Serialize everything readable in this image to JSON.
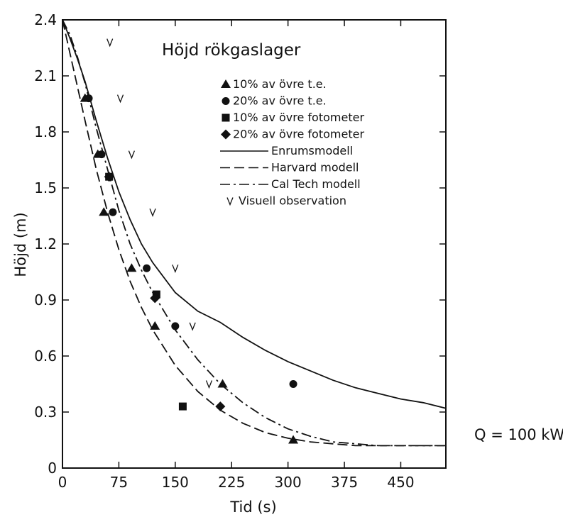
{
  "chart_data": {
    "type": "line",
    "title": "Höjd rökgaslager",
    "xlabel": "Tid (s)",
    "ylabel": "Höjd (m)",
    "xlim": [
      0,
      510
    ],
    "ylim": [
      0,
      2.4
    ],
    "x_ticks": [
      "0",
      "75",
      "150",
      "225",
      "300",
      "375",
      "450"
    ],
    "x_tick_values": [
      0,
      75,
      150,
      225,
      300,
      375,
      450
    ],
    "y_ticks": [
      "0",
      "0.3",
      "0.6",
      "0.9",
      "1.2",
      "1.5",
      "1.8",
      "2.1",
      "2.4"
    ],
    "y_tick_values": [
      0,
      0.3,
      0.6,
      0.9,
      1.2,
      1.5,
      1.8,
      2.1,
      2.4
    ],
    "grid": false,
    "legend_position": "top-right",
    "annotation": "Q = 100 kW",
    "series": [
      {
        "name": "10% av övre t.e.",
        "kind": "scatter",
        "marker": "triangle",
        "x": [
          30,
          47,
          55,
          92,
          123,
          213,
          307
        ],
        "y": [
          1.98,
          1.68,
          1.37,
          1.07,
          0.76,
          0.45,
          0.15
        ]
      },
      {
        "name": "20% av övre t.e.",
        "kind": "scatter",
        "marker": "circle",
        "x": [
          35,
          52,
          67,
          112,
          150,
          307
        ],
        "y": [
          1.98,
          1.68,
          1.37,
          1.07,
          0.76,
          0.45
        ]
      },
      {
        "name": "10% av övre fotometer",
        "kind": "scatter",
        "marker": "square",
        "x": [
          62,
          125,
          160
        ],
        "y": [
          1.56,
          0.93,
          0.33
        ]
      },
      {
        "name": "20% av övre fotometer",
        "kind": "scatter",
        "marker": "diamond",
        "x": [
          62,
          123,
          210
        ],
        "y": [
          1.56,
          0.91,
          0.33
        ]
      },
      {
        "name": "Enrumsmodell",
        "kind": "line",
        "dash": "solid",
        "x": [
          0,
          10,
          20,
          30,
          45,
          60,
          75,
          90,
          105,
          120,
          150,
          180,
          210,
          240,
          270,
          300,
          330,
          360,
          390,
          420,
          450,
          480,
          510
        ],
        "y": [
          2.4,
          2.3,
          2.19,
          2.07,
          1.86,
          1.66,
          1.48,
          1.33,
          1.2,
          1.1,
          0.94,
          0.84,
          0.78,
          0.7,
          0.63,
          0.57,
          0.52,
          0.47,
          0.43,
          0.4,
          0.37,
          0.35,
          0.32
        ]
      },
      {
        "name": "Harvard modell",
        "kind": "line",
        "dash": "dashed",
        "x": [
          0,
          10,
          20,
          30,
          45,
          60,
          75,
          90,
          105,
          120,
          150,
          180,
          210,
          240,
          270,
          300,
          330,
          360,
          390,
          420,
          450,
          480,
          510
        ],
        "y": [
          2.4,
          2.22,
          2.04,
          1.86,
          1.6,
          1.37,
          1.17,
          1.0,
          0.86,
          0.74,
          0.55,
          0.41,
          0.31,
          0.24,
          0.19,
          0.16,
          0.14,
          0.13,
          0.12,
          0.12,
          0.12,
          0.12,
          0.12
        ]
      },
      {
        "name": "Cal Tech modell",
        "kind": "line",
        "dash": "dashdot",
        "x": [
          0,
          10,
          20,
          30,
          45,
          60,
          75,
          90,
          105,
          120,
          150,
          180,
          210,
          240,
          270,
          300,
          330,
          360,
          390,
          420,
          450,
          480,
          510
        ],
        "y": [
          2.4,
          2.32,
          2.2,
          2.06,
          1.82,
          1.6,
          1.38,
          1.2,
          1.06,
          0.94,
          0.74,
          0.58,
          0.45,
          0.35,
          0.27,
          0.21,
          0.17,
          0.14,
          0.13,
          0.12,
          0.12,
          0.12,
          0.12
        ]
      },
      {
        "name": "Visuell observation",
        "kind": "scatter",
        "marker": "v",
        "x": [
          63,
          77,
          92,
          120,
          150,
          173,
          195
        ],
        "y": [
          2.28,
          1.98,
          1.68,
          1.37,
          1.07,
          0.76,
          0.45
        ]
      }
    ]
  }
}
